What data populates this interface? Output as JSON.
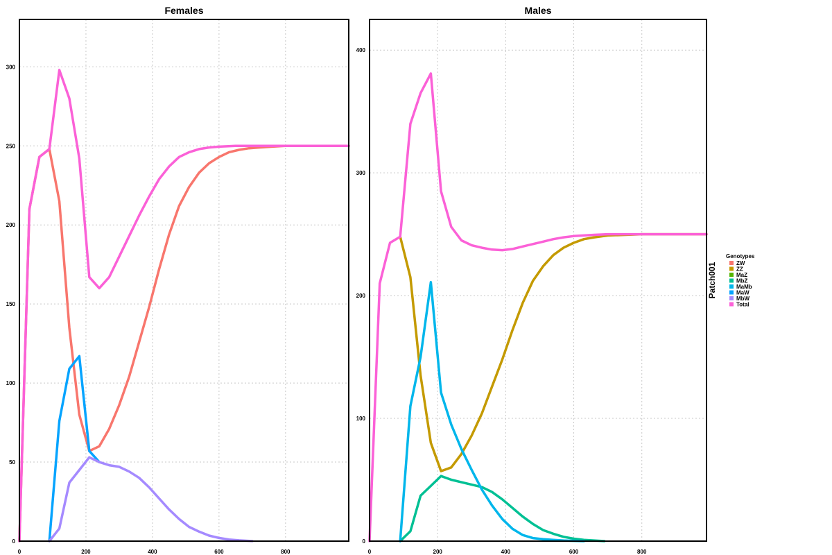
{
  "chart_data": {
    "type": "line",
    "strip_label": "Patch001",
    "legend": {
      "title": "Genotypes",
      "placement": "right",
      "entries": [
        {
          "name": "ZW",
          "color": "#F8766D"
        },
        {
          "name": "ZZ",
          "color": "#C49A00"
        },
        {
          "name": "MaZ",
          "color": "#53B400"
        },
        {
          "name": "MbZ",
          "color": "#00C094"
        },
        {
          "name": "MaMb",
          "color": "#00B6EB"
        },
        {
          "name": "MaW",
          "color": "#06A4FF"
        },
        {
          "name": "MbW",
          "color": "#A58AFF"
        },
        {
          "name": "Total",
          "color": "#FB61D7"
        }
      ]
    },
    "panels": [
      {
        "title": "Females",
        "xlim": [
          0,
          990
        ],
        "ylim": [
          0,
          330
        ],
        "xticks": [
          0,
          200,
          400,
          600,
          800
        ],
        "yticks": [
          0,
          50,
          100,
          150,
          200,
          250,
          300
        ],
        "grid": true,
        "series": [
          {
            "name": "ZW",
            "color": "#F8766D",
            "x": [
              0,
              30,
              60,
              90,
              120,
              150,
              180,
              210,
              240,
              270,
              300,
              330,
              360,
              390,
              420,
              450,
              480,
              510,
              540,
              570,
              600,
              630,
              660,
              690,
              720,
              760,
              800,
              850,
              900,
              990
            ],
            "y": [
              0,
              210,
              243,
              248,
              215,
              135,
              80,
              57,
              60,
              71,
              86,
              104,
              126,
              148,
              172,
              194,
              212,
              224,
              233,
              239,
              243,
              246,
              247.5,
              248.5,
              249,
              249.5,
              250,
              250,
              250,
              250
            ]
          },
          {
            "name": "MaW",
            "color": "#06A4FF",
            "x": [
              90,
              120,
              150,
              180,
              210,
              240
            ],
            "y": [
              0,
              76,
              109,
              117,
              57,
              50
            ]
          },
          {
            "name": "MbW",
            "color": "#A58AFF",
            "x": [
              90,
              120,
              150,
              180,
              210,
              240,
              270,
              300,
              330,
              360,
              390,
              420,
              450,
              480,
              510,
              540,
              570,
              600,
              630,
              660,
              700
            ],
            "y": [
              0,
              8,
              37,
              45,
              53,
              50,
              48,
              47,
              44,
              40,
              34,
              27,
              20,
              14,
              9,
              6,
              3.5,
              2,
              1,
              0.5,
              0
            ]
          },
          {
            "name": "Total",
            "color": "#FB61D7",
            "x": [
              0,
              30,
              60,
              90,
              120,
              150,
              180,
              210,
              240,
              270,
              300,
              330,
              360,
              390,
              420,
              450,
              480,
              510,
              540,
              570,
              600,
              650,
              700,
              800,
              900,
              990
            ],
            "y": [
              0,
              210,
              243,
              248,
              298,
              280,
              242,
              167,
              160,
              167,
              180,
              193,
              206,
              218,
              229,
              237,
              243,
              246,
              248,
              249,
              249.5,
              250,
              250,
              250,
              250,
              250
            ]
          }
        ]
      },
      {
        "title": "Males",
        "xlim": [
          0,
          990
        ],
        "ylim": [
          0,
          425
        ],
        "xticks": [
          0,
          200,
          400,
          600,
          800
        ],
        "yticks": [
          0,
          100,
          200,
          300,
          400
        ],
        "grid": true,
        "series": [
          {
            "name": "ZZ",
            "color": "#C49A00",
            "x": [
              90,
              120,
              150,
              180,
              210,
              240,
              270,
              300,
              330,
              360,
              390,
              420,
              450,
              480,
              510,
              540,
              570,
              600,
              630,
              660,
              700,
              800,
              900,
              990
            ],
            "y": [
              248,
              215,
              135,
              80,
              57,
              60,
              71,
              86,
              104,
              126,
              148,
              172,
              194,
              212,
              224,
              233,
              239,
              243,
              246,
              247.5,
              249,
              250,
              250,
              250
            ]
          },
          {
            "name": "MbZ",
            "color": "#00C094",
            "x": [
              90,
              120,
              150,
              180,
              210,
              240,
              270,
              300,
              330,
              360,
              390,
              420,
              450,
              480,
              510,
              540,
              570,
              600,
              630,
              660,
              690
            ],
            "y": [
              0,
              8,
              37,
              45,
              53,
              50,
              48,
              46,
              44,
              40,
              34,
              27,
              20,
              14,
              9,
              6,
              3.5,
              2,
              1,
              0.5,
              0
            ]
          },
          {
            "name": "MaMb",
            "color": "#00B6EB",
            "x": [
              90,
              120,
              150,
              180,
              210,
              240,
              270,
              300,
              330,
              360,
              390,
              420,
              450,
              480,
              510,
              540,
              570,
              600,
              630
            ],
            "y": [
              0,
              110,
              150,
              211,
              121,
              95,
              75,
              58,
              42,
              29,
              18,
              10,
              5,
              2.5,
              1.5,
              1,
              0.5,
              0.2,
              0
            ]
          },
          {
            "name": "Total",
            "color": "#FB61D7",
            "x": [
              0,
              30,
              60,
              90,
              120,
              150,
              180,
              210,
              240,
              270,
              300,
              330,
              360,
              390,
              420,
              450,
              480,
              510,
              540,
              570,
              600,
              630,
              660,
              700,
              800,
              900,
              990
            ],
            "y": [
              0,
              210,
              243,
              248,
              340,
              365,
              381,
              285,
              256,
              245,
              241,
              239,
              237.5,
              237,
              238,
              240,
              242,
              244,
              246,
              247.5,
              248.5,
              249,
              249.5,
              250,
              250,
              250,
              250
            ]
          }
        ]
      }
    ]
  }
}
